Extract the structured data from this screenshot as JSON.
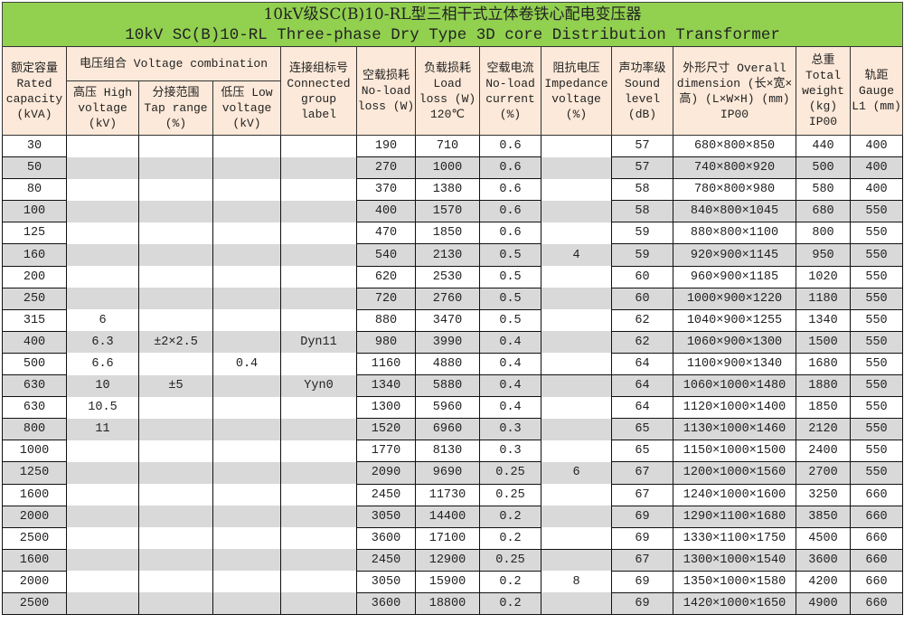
{
  "title": {
    "cn": "10kV级SC(B)10-RL型三相干式立体卷铁心配电变压器",
    "en": "10kV SC(B)10-RL Three-phase Dry Type 3D core Distribution Transformer"
  },
  "header": {
    "rated_capacity": "额定容量 Rated capacity (kVA)",
    "voltage_combination": "电压组合 Voltage combination",
    "high_voltage": "高压 High voltage (kV)",
    "tap_range": "分接范围 Tap range (%)",
    "low_voltage": "低压 Low voltage (kV)",
    "connection_group": "连接组标号 Connected group label",
    "no_load_loss": "空载损耗 No-load loss (W)",
    "load_loss": "负载损耗 Load loss (W) 120℃",
    "no_load_current": "空载电流 No-load current (%)",
    "impedance_voltage": "阻抗电压 Impedance voltage (%)",
    "sound_level": "声功率级 Sound level (dB)",
    "dimension": "外形尺寸 Overall dimension (长×宽×高) (L×W×H) (mm) IP00",
    "total_weight": "总重 Total weight (kg) IP00",
    "gauge": "轨距 Gauge L1 (mm)"
  },
  "rows": [
    {
      "cap": "30",
      "hv": "",
      "tap": "",
      "lv": "",
      "conn": "",
      "nll": "190",
      "ll": "710",
      "nlc": "0.6",
      "imp": "",
      "snd": "57",
      "dim": "680×800×850",
      "wt": "440",
      "gauge": "400"
    },
    {
      "cap": "50",
      "hv": "",
      "tap": "",
      "lv": "",
      "conn": "",
      "nll": "270",
      "ll": "1000",
      "nlc": "0.6",
      "imp": "",
      "snd": "57",
      "dim": "740×800×920",
      "wt": "500",
      "gauge": "400"
    },
    {
      "cap": "80",
      "hv": "",
      "tap": "",
      "lv": "",
      "conn": "",
      "nll": "370",
      "ll": "1380",
      "nlc": "0.6",
      "imp": "",
      "snd": "58",
      "dim": "780×800×980",
      "wt": "580",
      "gauge": "400"
    },
    {
      "cap": "100",
      "hv": "",
      "tap": "",
      "lv": "",
      "conn": "",
      "nll": "400",
      "ll": "1570",
      "nlc": "0.6",
      "imp": "",
      "snd": "58",
      "dim": "840×800×1045",
      "wt": "680",
      "gauge": "550"
    },
    {
      "cap": "125",
      "hv": "",
      "tap": "",
      "lv": "",
      "conn": "",
      "nll": "470",
      "ll": "1850",
      "nlc": "0.6",
      "imp": "",
      "snd": "59",
      "dim": "880×800×1100",
      "wt": "800",
      "gauge": "550"
    },
    {
      "cap": "160",
      "hv": "",
      "tap": "",
      "lv": "",
      "conn": "",
      "nll": "540",
      "ll": "2130",
      "nlc": "0.5",
      "imp": "4",
      "snd": "59",
      "dim": "920×900×1145",
      "wt": "950",
      "gauge": "550"
    },
    {
      "cap": "200",
      "hv": "",
      "tap": "",
      "lv": "",
      "conn": "",
      "nll": "620",
      "ll": "2530",
      "nlc": "0.5",
      "imp": "",
      "snd": "60",
      "dim": "960×900×1185",
      "wt": "1020",
      "gauge": "550"
    },
    {
      "cap": "250",
      "hv": "",
      "tap": "",
      "lv": "",
      "conn": "",
      "nll": "720",
      "ll": "2760",
      "nlc": "0.5",
      "imp": "",
      "snd": "60",
      "dim": "1000×900×1220",
      "wt": "1180",
      "gauge": "550"
    },
    {
      "cap": "315",
      "hv": "6",
      "tap": "",
      "lv": "",
      "conn": "",
      "nll": "880",
      "ll": "3470",
      "nlc": "0.5",
      "imp": "",
      "snd": "62",
      "dim": "1040×900×1255",
      "wt": "1340",
      "gauge": "550"
    },
    {
      "cap": "400",
      "hv": "6.3",
      "tap": "±2×2.5",
      "lv": "",
      "conn": "Dyn11",
      "nll": "980",
      "ll": "3990",
      "nlc": "0.4",
      "imp": "",
      "snd": "62",
      "dim": "1060×900×1300",
      "wt": "1500",
      "gauge": "550"
    },
    {
      "cap": "500",
      "hv": "6.6",
      "tap": "",
      "lv": "0.4",
      "conn": "",
      "nll": "1160",
      "ll": "4880",
      "nlc": "0.4",
      "imp": "",
      "snd": "64",
      "dim": "1100×900×1340",
      "wt": "1680",
      "gauge": "550"
    },
    {
      "cap": "630",
      "hv": "10",
      "tap": "±5",
      "lv": "",
      "conn": "Yyn0",
      "nll": "1340",
      "ll": "5880",
      "nlc": "0.4",
      "imp": "",
      "snd": "64",
      "dim": "1060×1000×1480",
      "wt": "1880",
      "gauge": "550"
    },
    {
      "cap": "630",
      "hv": "10.5",
      "tap": "",
      "lv": "",
      "conn": "",
      "nll": "1300",
      "ll": "5960",
      "nlc": "0.4",
      "imp": "",
      "snd": "64",
      "dim": "1120×1000×1400",
      "wt": "1850",
      "gauge": "550"
    },
    {
      "cap": "800",
      "hv": "11",
      "tap": "",
      "lv": "",
      "conn": "",
      "nll": "1520",
      "ll": "6960",
      "nlc": "0.3",
      "imp": "",
      "snd": "65",
      "dim": "1130×1000×1460",
      "wt": "2120",
      "gauge": "550"
    },
    {
      "cap": "1000",
      "hv": "",
      "tap": "",
      "lv": "",
      "conn": "",
      "nll": "1770",
      "ll": "8130",
      "nlc": "0.3",
      "imp": "",
      "snd": "65",
      "dim": "1150×1000×1500",
      "wt": "2400",
      "gauge": "550"
    },
    {
      "cap": "1250",
      "hv": "",
      "tap": "",
      "lv": "",
      "conn": "",
      "nll": "2090",
      "ll": "9690",
      "nlc": "0.25",
      "imp": "6",
      "snd": "67",
      "dim": "1200×1000×1560",
      "wt": "2700",
      "gauge": "550"
    },
    {
      "cap": "1600",
      "hv": "",
      "tap": "",
      "lv": "",
      "conn": "",
      "nll": "2450",
      "ll": "11730",
      "nlc": "0.25",
      "imp": "",
      "snd": "67",
      "dim": "1240×1000×1600",
      "wt": "3250",
      "gauge": "660"
    },
    {
      "cap": "2000",
      "hv": "",
      "tap": "",
      "lv": "",
      "conn": "",
      "nll": "3050",
      "ll": "14400",
      "nlc": "0.2",
      "imp": "",
      "snd": "69",
      "dim": "1290×1100×1680",
      "wt": "3850",
      "gauge": "660"
    },
    {
      "cap": "2500",
      "hv": "",
      "tap": "",
      "lv": "",
      "conn": "",
      "nll": "3600",
      "ll": "17100",
      "nlc": "0.2",
      "imp": "",
      "snd": "69",
      "dim": "1330×1100×1750",
      "wt": "4500",
      "gauge": "660"
    },
    {
      "cap": "1600",
      "hv": "",
      "tap": "",
      "lv": "",
      "conn": "",
      "nll": "2450",
      "ll": "12900",
      "nlc": "0.25",
      "imp": "",
      "snd": "67",
      "dim": "1300×1000×1540",
      "wt": "3600",
      "gauge": "660"
    },
    {
      "cap": "2000",
      "hv": "",
      "tap": "",
      "lv": "",
      "conn": "",
      "nll": "3050",
      "ll": "15900",
      "nlc": "0.2",
      "imp": "8",
      "snd": "69",
      "dim": "1350×1000×1580",
      "wt": "4200",
      "gauge": "660"
    },
    {
      "cap": "2500",
      "hv": "",
      "tap": "",
      "lv": "",
      "conn": "",
      "nll": "3600",
      "ll": "18800",
      "nlc": "0.2",
      "imp": "",
      "snd": "69",
      "dim": "1420×1000×1650",
      "wt": "4900",
      "gauge": "660"
    }
  ],
  "colors": {
    "title_bg": "#92d050",
    "header_bg": "#fde9d9",
    "stripe": "#d9d9d9"
  }
}
